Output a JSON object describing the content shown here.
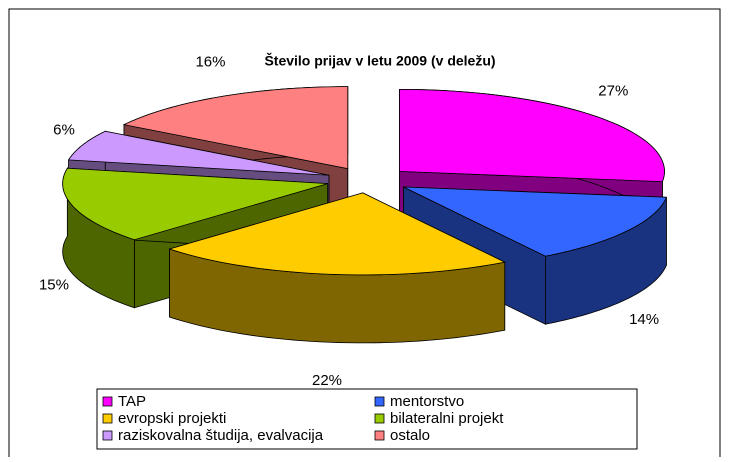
{
  "chart_data": {
    "type": "pie",
    "title": "Število prijav v letu 2009 (v deležu)",
    "categories": [
      "TAP",
      "mentorstvo",
      "evropski projekti",
      "bilateralni projekt",
      "raziskovalna študija, evalvacija",
      "ostalo"
    ],
    "values": [
      27,
      14,
      22,
      15,
      6,
      16
    ],
    "value_labels": [
      "27%",
      "14%",
      "22%",
      "15%",
      "6%",
      "16%"
    ],
    "colors": [
      "#ff00ff",
      "#3366ff",
      "#ffcc00",
      "#99cc00",
      "#cc99ff",
      "#ff8080"
    ],
    "legend": "bottom"
  }
}
